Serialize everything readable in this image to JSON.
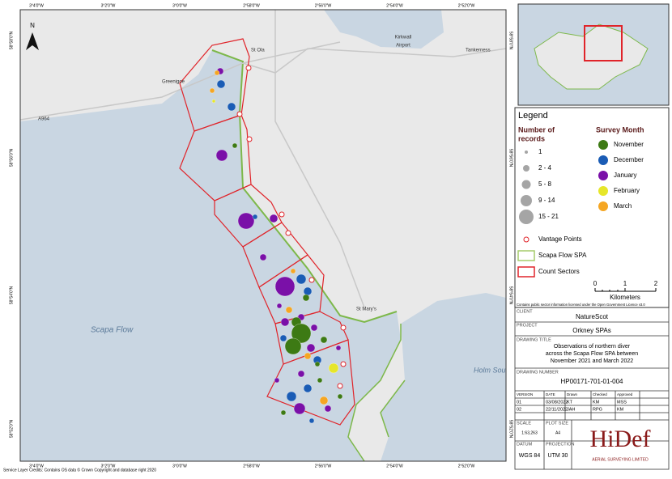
{
  "map": {
    "lon_labels": [
      "3°4'0\"W",
      "3°2'0\"W",
      "3°0'0\"W",
      "2°58'0\"W",
      "2°56'0\"W",
      "2°54'0\"W",
      "2°52'0\"W"
    ],
    "lat_labels": [
      "58°58'0\"N",
      "58°56'0\"N",
      "58°54'0\"N",
      "58°52'0\"N"
    ],
    "places": [
      "St Ola",
      "Kirkwall",
      "Airport",
      "Tankerness",
      "Greenigoe",
      "A964",
      "Scapa Flow",
      "St Mary's",
      "Holm Sou"
    ],
    "north": "N"
  },
  "legend": {
    "title": "Legend",
    "size_title": [
      "Number of",
      "records"
    ],
    "sizes": [
      "1",
      "2 - 4",
      "5 - 8",
      "9 - 14",
      "15 - 21"
    ],
    "month_title": "Survey Month",
    "months": [
      {
        "label": "November",
        "color": "#3d7a14"
      },
      {
        "label": "December",
        "color": "#1a5cb5"
      },
      {
        "label": "January",
        "color": "#7a10a8"
      },
      {
        "label": "February",
        "color": "#e6e62a"
      },
      {
        "label": "March",
        "color": "#f5a623"
      }
    ],
    "features": [
      "Vantage Points",
      "Scapa Flow SPA",
      "Count Sectors"
    ],
    "scale": [
      "0",
      "1",
      "2"
    ],
    "scale_unit": "Kilometers",
    "licence": "Contains public sector information licensed under the Open Government Licence v3.0"
  },
  "title_block": {
    "client_label": "CLIENT",
    "client": "NatureScot",
    "project_label": "PROJECT",
    "project": "Orkney SPAs",
    "drawing_title_label": "DRAWING TITLE",
    "drawing_title": [
      "Observations of northern diver",
      "across the Scapa Flow SPA between",
      "November 2021 and March 2022"
    ],
    "drawing_number_label": "DRAWING NUMBER",
    "drawing_number": "HP00171-701-01-004",
    "revisions": {
      "header": [
        "VERSION",
        "DATE",
        "Drawn",
        "Checked",
        "Approved"
      ],
      "rows": [
        [
          "01",
          "03/08/2022",
          "KT",
          "KM",
          "MSS"
        ],
        [
          "02",
          "22/11/2022",
          "JAH",
          "RPG",
          "KM"
        ]
      ]
    },
    "scale_label": "SCALE",
    "scale": "1:63,263",
    "plot_size_label": "PLOT SIZE",
    "plot_size": "A4",
    "datum_label": "DATUM",
    "datum": "WGS 84",
    "projection_label": "PROJECTION",
    "projection": "UTM 30",
    "logo": "HiDef",
    "logo_sub": "AERIAL SURVEYING LIMITED"
  },
  "credits": "Service Layer Credits: Contains OS data © Crown Copyright and database right 2020"
}
